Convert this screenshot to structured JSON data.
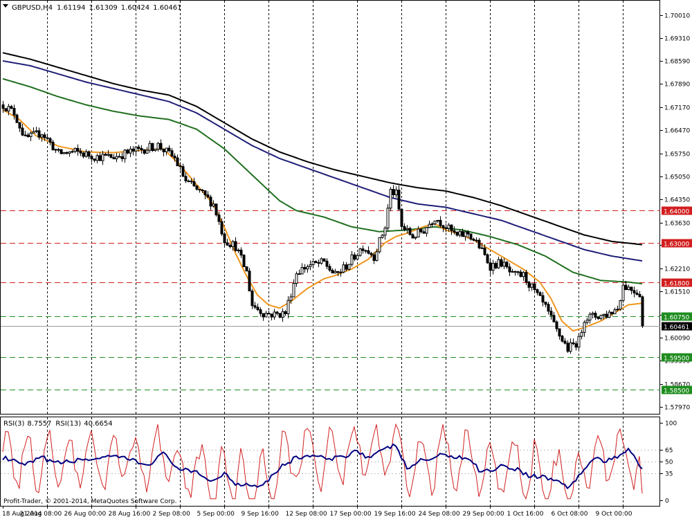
{
  "header": {
    "symbol": "GBPUSD,H4",
    "open": "1.61194",
    "high": "1.61309",
    "low": "1.60424",
    "close": "1.60461"
  },
  "rsi_header": {
    "rsi3_label": "RSI(3)",
    "rsi3_value": "8.7557",
    "rsi13_label": "RSI(13)",
    "rsi13_value": "40.6654"
  },
  "copyright": "Profit-Trader, © 2001-2014, MetaQuotes Software Corp.",
  "colors": {
    "bg": "#ffffff",
    "candle": "#000000",
    "ema_fast": "#f0961e",
    "ma_green": "#1e6e1e",
    "ma_navy": "#1e1e78",
    "ma_black": "#000000",
    "level_red": "#d21e1e",
    "level_green": "#1e8c1e",
    "rsi_fast": "#d21e1e",
    "rsi_slow": "#000080",
    "grid": "#000000"
  },
  "chart_data": {
    "type": "candlestick",
    "symbol": "GBPUSD,H4",
    "price_ticks": [
      "1.70010",
      "1.69310",
      "1.68590",
      "1.67890",
      "1.67170",
      "1.66470",
      "1.65750",
      "1.65050",
      "1.64350",
      "1.63630",
      "1.62930",
      "1.62210",
      "1.61510",
      "1.60790",
      "1.60090",
      "1.59390",
      "1.58670",
      "1.57970"
    ],
    "price_ylim": [
      1.5775,
      1.7045
    ],
    "levels": [
      {
        "value": "1.64000",
        "price": 1.64,
        "color": "red"
      },
      {
        "value": "1.63000",
        "price": 1.63,
        "color": "red"
      },
      {
        "value": "1.61800",
        "price": 1.618,
        "color": "red"
      },
      {
        "value": "1.60750",
        "price": 1.6075,
        "color": "green"
      },
      {
        "value": "1.59500",
        "price": 1.595,
        "color": "green"
      },
      {
        "value": "1.58500",
        "price": 1.585,
        "color": "green"
      }
    ],
    "current_price": {
      "value": "1.60461",
      "price": 1.60461
    },
    "date_labels": [
      "18 Aug 2014",
      "21 Aug 08:00",
      "26 Aug 00:00",
      "28 Aug 16:00",
      "2 Sep 08:00",
      "5 Sep 00:00",
      "9 Sep 16:00",
      "12 Sep 08:00",
      "17 Sep 00:00",
      "19 Sep 16:00",
      "24 Sep 08:00",
      "29 Sep 00:00",
      "1 Oct 16:00",
      "6 Oct 08:00",
      "9 Oct 00:00"
    ],
    "date_index": [
      0,
      16,
      32,
      48,
      64,
      80,
      96,
      112,
      128,
      144,
      160,
      176,
      192,
      208,
      224
    ],
    "bar_count": 232,
    "close_series": [
      [
        0,
        1.6725
      ],
      [
        4,
        1.67
      ],
      [
        8,
        1.662
      ],
      [
        14,
        1.664
      ],
      [
        20,
        1.6575
      ],
      [
        26,
        1.658
      ],
      [
        34,
        1.6565
      ],
      [
        40,
        1.6565
      ],
      [
        46,
        1.658
      ],
      [
        56,
        1.66
      ],
      [
        62,
        1.656
      ],
      [
        66,
        1.649
      ],
      [
        72,
        1.645
      ],
      [
        76,
        1.642
      ],
      [
        80,
        1.631
      ],
      [
        84,
        1.629
      ],
      [
        88,
        1.621
      ],
      [
        90,
        1.611
      ],
      [
        94,
        1.6085
      ],
      [
        98,
        1.608
      ],
      [
        102,
        1.6085
      ],
      [
        106,
        1.621
      ],
      [
        110,
        1.623
      ],
      [
        116,
        1.624
      ],
      [
        120,
        1.62
      ],
      [
        124,
        1.623
      ],
      [
        130,
        1.629
      ],
      [
        134,
        1.626
      ],
      [
        138,
        1.635
      ],
      [
        140,
        1.646
      ],
      [
        142,
        1.645
      ],
      [
        144,
        1.635
      ],
      [
        148,
        1.632
      ],
      [
        152,
        1.634
      ],
      [
        156,
        1.638
      ],
      [
        160,
        1.635
      ],
      [
        164,
        1.632
      ],
      [
        168,
        1.633
      ],
      [
        172,
        1.629
      ],
      [
        176,
        1.623
      ],
      [
        180,
        1.624
      ],
      [
        184,
        1.62
      ],
      [
        188,
        1.62
      ],
      [
        192,
        1.615
      ],
      [
        196,
        1.61
      ],
      [
        200,
        1.603
      ],
      [
        204,
        1.5975
      ],
      [
        208,
        1.6
      ],
      [
        210,
        1.607
      ],
      [
        214,
        1.6075
      ],
      [
        218,
        1.608
      ],
      [
        222,
        1.61
      ],
      [
        224,
        1.617
      ],
      [
        228,
        1.6155
      ],
      [
        230,
        1.6145
      ],
      [
        231,
        1.6046
      ]
    ],
    "ema_fast": [
      [
        0,
        1.671
      ],
      [
        6,
        1.668
      ],
      [
        12,
        1.663
      ],
      [
        20,
        1.6598
      ],
      [
        30,
        1.658
      ],
      [
        40,
        1.6578
      ],
      [
        50,
        1.6585
      ],
      [
        58,
        1.659
      ],
      [
        64,
        1.654
      ],
      [
        70,
        1.648
      ],
      [
        76,
        1.642
      ],
      [
        80,
        1.635
      ],
      [
        84,
        1.627
      ],
      [
        88,
        1.62
      ],
      [
        92,
        1.614
      ],
      [
        96,
        1.611
      ],
      [
        100,
        1.61
      ],
      [
        104,
        1.612
      ],
      [
        110,
        1.616
      ],
      [
        116,
        1.619
      ],
      [
        120,
        1.62
      ],
      [
        126,
        1.622
      ],
      [
        132,
        1.625
      ],
      [
        138,
        1.63
      ],
      [
        142,
        1.632
      ],
      [
        146,
        1.633
      ],
      [
        152,
        1.635
      ],
      [
        156,
        1.636
      ],
      [
        160,
        1.634
      ],
      [
        164,
        1.633
      ],
      [
        170,
        1.631
      ],
      [
        176,
        1.628
      ],
      [
        182,
        1.625
      ],
      [
        188,
        1.622
      ],
      [
        194,
        1.618
      ],
      [
        198,
        1.613
      ],
      [
        202,
        1.606
      ],
      [
        206,
        1.603
      ],
      [
        210,
        1.604
      ],
      [
        216,
        1.606
      ],
      [
        222,
        1.609
      ],
      [
        226,
        1.611
      ],
      [
        231,
        1.6115
      ]
    ],
    "ma_green": [
      [
        0,
        1.6805
      ],
      [
        10,
        1.678
      ],
      [
        20,
        1.675
      ],
      [
        30,
        1.6725
      ],
      [
        40,
        1.6705
      ],
      [
        50,
        1.669
      ],
      [
        60,
        1.668
      ],
      [
        70,
        1.665
      ],
      [
        80,
        1.659
      ],
      [
        90,
        1.651
      ],
      [
        100,
        1.643
      ],
      [
        106,
        1.64
      ],
      [
        116,
        1.638
      ],
      [
        126,
        1.635
      ],
      [
        136,
        1.6335
      ],
      [
        146,
        1.634
      ],
      [
        156,
        1.635
      ],
      [
        166,
        1.634
      ],
      [
        176,
        1.632
      ],
      [
        186,
        1.6295
      ],
      [
        196,
        1.626
      ],
      [
        206,
        1.621
      ],
      [
        216,
        1.6185
      ],
      [
        226,
        1.618
      ],
      [
        231,
        1.6175
      ]
    ],
    "ma_navy": [
      [
        0,
        1.686
      ],
      [
        10,
        1.6845
      ],
      [
        20,
        1.682
      ],
      [
        30,
        1.6795
      ],
      [
        40,
        1.6775
      ],
      [
        50,
        1.6755
      ],
      [
        60,
        1.6735
      ],
      [
        70,
        1.67
      ],
      [
        80,
        1.665
      ],
      [
        90,
        1.66
      ],
      [
        100,
        1.656
      ],
      [
        110,
        1.653
      ],
      [
        120,
        1.65
      ],
      [
        130,
        1.647
      ],
      [
        140,
        1.644
      ],
      [
        150,
        1.642
      ],
      [
        160,
        1.641
      ],
      [
        170,
        1.639
      ],
      [
        180,
        1.637
      ],
      [
        190,
        1.634
      ],
      [
        200,
        1.631
      ],
      [
        210,
        1.628
      ],
      [
        220,
        1.626
      ],
      [
        231,
        1.6245
      ]
    ],
    "ma_black": [
      [
        0,
        1.6885
      ],
      [
        10,
        1.6865
      ],
      [
        20,
        1.684
      ],
      [
        30,
        1.6815
      ],
      [
        40,
        1.679
      ],
      [
        50,
        1.677
      ],
      [
        60,
        1.6755
      ],
      [
        70,
        1.672
      ],
      [
        80,
        1.667
      ],
      [
        90,
        1.662
      ],
      [
        100,
        1.658
      ],
      [
        110,
        1.655
      ],
      [
        120,
        1.6525
      ],
      [
        130,
        1.6505
      ],
      [
        140,
        1.6485
      ],
      [
        150,
        1.647
      ],
      [
        160,
        1.646
      ],
      [
        170,
        1.644
      ],
      [
        180,
        1.6415
      ],
      [
        190,
        1.6385
      ],
      [
        200,
        1.6355
      ],
      [
        210,
        1.6325
      ],
      [
        220,
        1.6305
      ],
      [
        231,
        1.6295
      ]
    ],
    "rsi_panel": {
      "ylim": [
        0,
        100
      ],
      "ticks": [
        "100",
        "65",
        "50",
        "35",
        "0"
      ],
      "tick_values": [
        100,
        65,
        50,
        35,
        0
      ],
      "rsi3_last": "8.7557",
      "rsi13_last": "40.6654",
      "rsi13_series": [
        [
          0,
          55
        ],
        [
          8,
          45
        ],
        [
          14,
          55
        ],
        [
          20,
          48
        ],
        [
          28,
          52
        ],
        [
          36,
          55
        ],
        [
          44,
          55
        ],
        [
          52,
          45
        ],
        [
          58,
          60
        ],
        [
          64,
          40
        ],
        [
          70,
          35
        ],
        [
          76,
          25
        ],
        [
          80,
          35
        ],
        [
          84,
          22
        ],
        [
          90,
          20
        ],
        [
          94,
          20
        ],
        [
          100,
          42
        ],
        [
          106,
          55
        ],
        [
          112,
          58
        ],
        [
          118,
          52
        ],
        [
          124,
          58
        ],
        [
          128,
          65
        ],
        [
          132,
          55
        ],
        [
          138,
          65
        ],
        [
          142,
          72
        ],
        [
          146,
          40
        ],
        [
          150,
          50
        ],
        [
          156,
          55
        ],
        [
          160,
          60
        ],
        [
          164,
          55
        ],
        [
          168,
          55
        ],
        [
          172,
          40
        ],
        [
          176,
          38
        ],
        [
          180,
          45
        ],
        [
          186,
          40
        ],
        [
          190,
          32
        ],
        [
          196,
          30
        ],
        [
          200,
          25
        ],
        [
          204,
          18
        ],
        [
          206,
          22
        ],
        [
          210,
          40
        ],
        [
          214,
          55
        ],
        [
          218,
          50
        ],
        [
          222,
          55
        ],
        [
          226,
          68
        ],
        [
          228,
          58
        ],
        [
          231,
          41
        ]
      ]
    }
  }
}
